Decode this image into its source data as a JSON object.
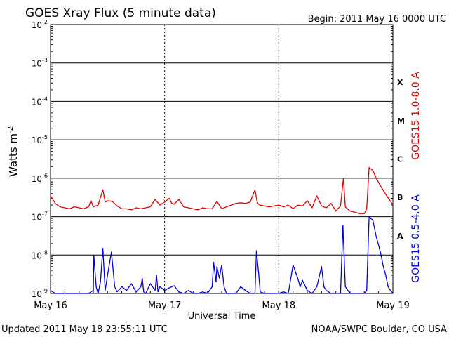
{
  "chart_data": {
    "type": "line",
    "title": "GOES Xray Flux (5 minute data)",
    "begin_text": "Begin:  2011 May 16 0000 UTC",
    "xlabel": "Universal Time",
    "ylabel": "Watts m",
    "ylabel_superscript": "-2",
    "y_scale": "log",
    "ylim": [
      1e-09,
      0.01
    ],
    "xlim": [
      0,
      72
    ],
    "y_ticks": [
      {
        "base": "10",
        "exp": "-2",
        "value": 0.01
      },
      {
        "base": "10",
        "exp": "-3",
        "value": 0.001
      },
      {
        "base": "10",
        "exp": "-4",
        "value": 0.0001
      },
      {
        "base": "10",
        "exp": "-5",
        "value": 1e-05
      },
      {
        "base": "10",
        "exp": "-6",
        "value": 1e-06
      },
      {
        "base": "10",
        "exp": "-7",
        "value": 1e-07
      },
      {
        "base": "10",
        "exp": "-8",
        "value": 1e-08
      },
      {
        "base": "10",
        "exp": "-9",
        "value": 1e-09
      }
    ],
    "x_ticks": [
      {
        "label": "May 16",
        "hours": 0
      },
      {
        "label": "May 17",
        "hours": 24
      },
      {
        "label": "May 18",
        "hours": 48
      },
      {
        "label": "May 19",
        "hours": 72
      }
    ],
    "flare_classes": [
      {
        "label": "X",
        "low": 0.0001,
        "high": 0.001
      },
      {
        "label": "M",
        "low": 1e-05,
        "high": 0.0001
      },
      {
        "label": "C",
        "low": 1e-06,
        "high": 1e-05
      },
      {
        "label": "B",
        "low": 1e-07,
        "high": 1e-06
      },
      {
        "label": "A",
        "low": 1e-08,
        "high": 1e-07
      }
    ],
    "series": [
      {
        "name": "GOES15 1.0-8.0 A",
        "color": "#e00000",
        "points": [
          [
            0,
            3.5e-07
          ],
          [
            1,
            2.2e-07
          ],
          [
            2,
            1.8e-07
          ],
          [
            3,
            1.7e-07
          ],
          [
            4,
            1.6e-07
          ],
          [
            5,
            1.8e-07
          ],
          [
            6,
            1.7e-07
          ],
          [
            7,
            1.6e-07
          ],
          [
            8,
            1.8e-07
          ],
          [
            8.5,
            2.6e-07
          ],
          [
            9,
            1.8e-07
          ],
          [
            10,
            2e-07
          ],
          [
            11,
            5e-07
          ],
          [
            11.5,
            2.4e-07
          ],
          [
            12,
            2.6e-07
          ],
          [
            13,
            2.5e-07
          ],
          [
            14,
            1.9e-07
          ],
          [
            15,
            1.6e-07
          ],
          [
            16,
            1.6e-07
          ],
          [
            17,
            1.5e-07
          ],
          [
            18,
            1.7e-07
          ],
          [
            19,
            1.6e-07
          ],
          [
            20,
            1.7e-07
          ],
          [
            21,
            1.8e-07
          ],
          [
            22,
            2.8e-07
          ],
          [
            23,
            2e-07
          ],
          [
            24,
            2.4e-07
          ],
          [
            25,
            3e-07
          ],
          [
            25.5,
            2.2e-07
          ],
          [
            26,
            2.1e-07
          ],
          [
            27,
            2.8e-07
          ],
          [
            28,
            1.8e-07
          ],
          [
            29,
            1.7e-07
          ],
          [
            30,
            1.6e-07
          ],
          [
            31,
            1.5e-07
          ],
          [
            32,
            1.7e-07
          ],
          [
            33,
            1.6e-07
          ],
          [
            34,
            1.6e-07
          ],
          [
            35,
            2.5e-07
          ],
          [
            36,
            1.6e-07
          ],
          [
            37,
            1.8e-07
          ],
          [
            38,
            2e-07
          ],
          [
            39,
            2.2e-07
          ],
          [
            40,
            2.3e-07
          ],
          [
            41,
            2.2e-07
          ],
          [
            42,
            2.4e-07
          ],
          [
            43,
            5e-07
          ],
          [
            43.5,
            2.3e-07
          ],
          [
            44,
            2e-07
          ],
          [
            45,
            1.9e-07
          ],
          [
            46,
            1.8e-07
          ],
          [
            47,
            1.9e-07
          ],
          [
            48,
            2e-07
          ],
          [
            49,
            1.8e-07
          ],
          [
            50,
            2e-07
          ],
          [
            51,
            1.6e-07
          ],
          [
            52,
            2e-07
          ],
          [
            53,
            1.9e-07
          ],
          [
            54,
            2.6e-07
          ],
          [
            55,
            1.7e-07
          ],
          [
            56,
            3.5e-07
          ],
          [
            57,
            1.9e-07
          ],
          [
            58,
            1.7e-07
          ],
          [
            59,
            2.2e-07
          ],
          [
            60,
            1.4e-07
          ],
          [
            61,
            1.9e-07
          ],
          [
            61.6,
            1e-06
          ],
          [
            62,
            1.8e-07
          ],
          [
            63,
            1.4e-07
          ],
          [
            64,
            1.3e-07
          ],
          [
            65,
            1.2e-07
          ],
          [
            66,
            1.2e-07
          ],
          [
            66.5,
            1.6e-07
          ],
          [
            67,
            1.9e-06
          ],
          [
            67.8,
            1.6e-06
          ],
          [
            68.5,
            1e-06
          ],
          [
            69.5,
            6e-07
          ],
          [
            70.5,
            3.8e-07
          ],
          [
            71.5,
            2.5e-07
          ],
          [
            72,
            2e-07
          ]
        ]
      },
      {
        "name": "GOES15 0.5-4.0 A",
        "color": "#0000e0",
        "points": [
          [
            0,
            1.2e-09
          ],
          [
            1,
            1e-09
          ],
          [
            2,
            1e-09
          ],
          [
            3,
            1e-09
          ],
          [
            4,
            1e-09
          ],
          [
            5,
            1e-09
          ],
          [
            6,
            1e-09
          ],
          [
            7,
            1e-09
          ],
          [
            8,
            1e-09
          ],
          [
            9,
            1.2e-09
          ],
          [
            9.1,
            1e-08
          ],
          [
            9.6,
            1.5e-09
          ],
          [
            10,
            1e-09
          ],
          [
            10.5,
            2e-09
          ],
          [
            11,
            1.5e-08
          ],
          [
            11.5,
            1.2e-09
          ],
          [
            12,
            3e-09
          ],
          [
            12.8,
            1.2e-08
          ],
          [
            13.5,
            1.5e-09
          ],
          [
            14,
            1.1e-09
          ],
          [
            15,
            1.5e-09
          ],
          [
            16,
            1.2e-09
          ],
          [
            17,
            1.8e-09
          ],
          [
            18,
            1.1e-09
          ],
          [
            19,
            1.5e-09
          ],
          [
            19.3,
            2.5e-09
          ],
          [
            19.6,
            1.1e-09
          ],
          [
            20,
            1e-09
          ],
          [
            21,
            1.8e-09
          ],
          [
            22,
            1.2e-09
          ],
          [
            22.3,
            3e-09
          ],
          [
            22.6,
            1.1e-09
          ],
          [
            23,
            1.5e-09
          ],
          [
            24,
            1.2e-09
          ],
          [
            25,
            1.4e-09
          ],
          [
            26,
            1.6e-09
          ],
          [
            27,
            1.1e-09
          ],
          [
            28,
            1e-09
          ],
          [
            29,
            1.2e-09
          ],
          [
            30,
            1e-09
          ],
          [
            31,
            1e-09
          ],
          [
            32,
            1.1e-09
          ],
          [
            33,
            1e-09
          ],
          [
            34,
            1.5e-09
          ],
          [
            34.3,
            6.5e-09
          ],
          [
            34.8,
            2e-09
          ],
          [
            35,
            5e-09
          ],
          [
            35.5,
            2.5e-09
          ],
          [
            36,
            5.5e-09
          ],
          [
            36.5,
            1.5e-09
          ],
          [
            37,
            1e-09
          ],
          [
            38,
            1e-09
          ],
          [
            39,
            1e-09
          ],
          [
            40,
            1.5e-09
          ],
          [
            41,
            1.2e-09
          ],
          [
            42,
            1e-09
          ],
          [
            43,
            1e-09
          ],
          [
            43.3,
            1.3e-08
          ],
          [
            43.8,
            3e-09
          ],
          [
            44.1,
            1.1e-09
          ],
          [
            45,
            1e-09
          ],
          [
            46,
            1e-09
          ],
          [
            47,
            1e-09
          ],
          [
            48,
            1e-09
          ],
          [
            49,
            1.1e-09
          ],
          [
            50,
            1e-09
          ],
          [
            51,
            5.5e-09
          ],
          [
            52,
            2.5e-09
          ],
          [
            52.5,
            1.5e-09
          ],
          [
            53,
            2.2e-09
          ],
          [
            54,
            1.2e-09
          ],
          [
            55,
            1e-09
          ],
          [
            56,
            1.5e-09
          ],
          [
            57,
            5e-09
          ],
          [
            57.5,
            1.5e-09
          ],
          [
            58,
            1.2e-09
          ],
          [
            59,
            1e-09
          ],
          [
            60,
            1e-09
          ],
          [
            61,
            1e-09
          ],
          [
            61.5,
            6e-08
          ],
          [
            62,
            1.5e-09
          ],
          [
            63,
            1e-09
          ],
          [
            64,
            1e-09
          ],
          [
            65,
            1e-09
          ],
          [
            66,
            1e-09
          ],
          [
            66.5,
            1.2e-09
          ],
          [
            67,
            1e-07
          ],
          [
            67.8,
            8e-08
          ],
          [
            68.5,
            3e-08
          ],
          [
            69,
            1.8e-08
          ],
          [
            69.5,
            1e-08
          ],
          [
            70,
            5e-09
          ],
          [
            70.5,
            3e-09
          ],
          [
            71,
            1.5e-09
          ],
          [
            71.5,
            1.2e-09
          ],
          [
            72,
            1e-09
          ]
        ]
      }
    ],
    "footer_left": "Updated 2011 May 18 23:55:11 UTC",
    "footer_right": "NOAA/SWPC Boulder, CO USA"
  }
}
